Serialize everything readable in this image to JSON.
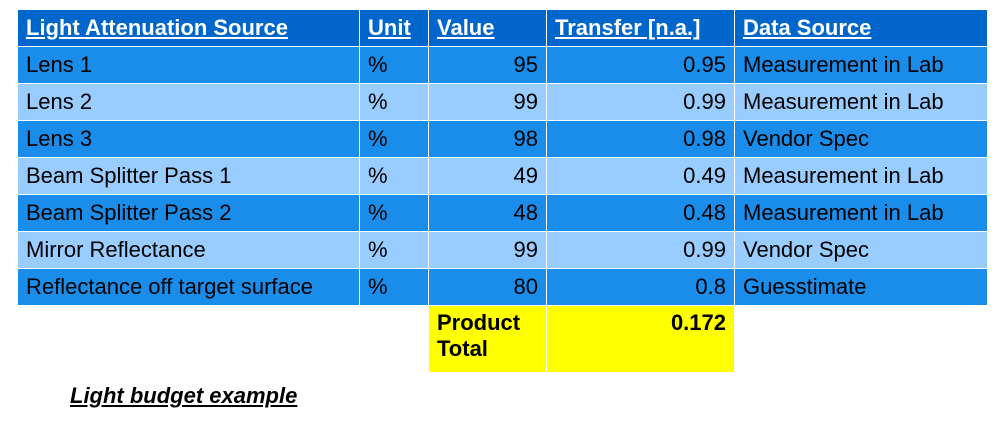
{
  "table": {
    "header": [
      "Light Attenuation Source",
      "Unit",
      "Value",
      "Transfer [n.a.]",
      "Data Source"
    ],
    "rows": [
      [
        "Lens 1",
        "%",
        95,
        0.95,
        "Measurement in Lab"
      ],
      [
        "Lens 2",
        "%",
        99,
        0.99,
        "Measurement in Lab"
      ],
      [
        "Lens 3",
        "%",
        98,
        0.98,
        "Vendor Spec"
      ],
      [
        "Beam Splitter Pass 1",
        "%",
        49,
        0.49,
        "Measurement in Lab"
      ],
      [
        "Beam Splitter Pass 2",
        "%",
        48,
        0.48,
        "Measurement in Lab"
      ],
      [
        "Mirror Reflectance",
        "%",
        99,
        0.99,
        "Vendor Spec"
      ],
      [
        "Reflectance off target surface",
        "%",
        80,
        0.8,
        "Guesstimate"
      ]
    ],
    "total": {
      "label": "Product Total",
      "value": 0.172
    }
  },
  "caption": "Light budget example"
}
